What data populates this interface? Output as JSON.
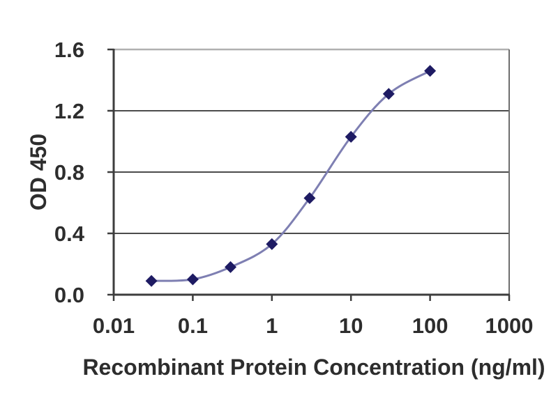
{
  "colors": {
    "background": "#ffffff",
    "text": "#2d2d2d",
    "axis": "#3d3d3d",
    "gridline": "#4b4b4b",
    "plot_border_top": "#b0b0b0",
    "plot_border_right": "#6e6e6e",
    "series_line": "#7e7fb2",
    "series_marker": "#1e1b63"
  },
  "chart_data": {
    "type": "line",
    "xlabel": "Recombinant Protein Concentration (ng/ml)",
    "ylabel": "OD 450",
    "x_scale": "log",
    "xlim": [
      0.01,
      1000
    ],
    "ylim": [
      0,
      1.6
    ],
    "x_tick_values": [
      0.01,
      0.1,
      1,
      10,
      100,
      1000
    ],
    "x_tick_labels": [
      "0.01",
      "0.1",
      "1",
      "10",
      "100",
      "1000"
    ],
    "y_tick_values": [
      0,
      0.4,
      0.8,
      1.2,
      1.6
    ],
    "y_tick_labels": [
      "0.0",
      "0.4",
      "0.8",
      "1.2",
      "1.6"
    ],
    "grid": "horizontal",
    "legend": "none",
    "series": [
      {
        "marker": "diamond",
        "line_color": "#7e7fb2",
        "marker_color": "#1e1b63",
        "smoothed": true,
        "x": [
          0.03,
          0.1,
          0.3,
          1,
          3,
          10,
          30,
          100
        ],
        "y": [
          0.09,
          0.1,
          0.18,
          0.33,
          0.63,
          1.03,
          1.31,
          1.46
        ]
      }
    ]
  }
}
